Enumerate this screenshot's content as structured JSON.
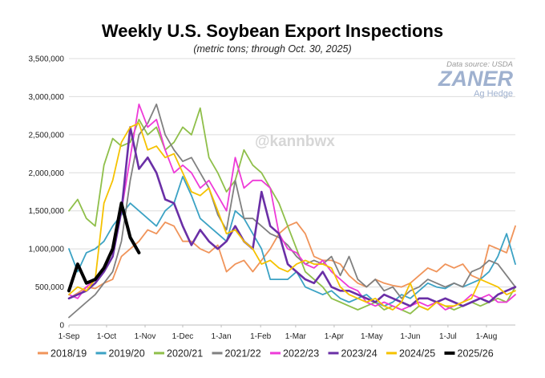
{
  "chart_data": {
    "type": "line",
    "title": "Weekly U.S. Soybean Export Inspections",
    "subtitle": "(metric tons; through Oct. 30, 2025)",
    "source": "Data source: USDA",
    "brand": "ZANER",
    "brand_sub": "Ag Hedge",
    "watermark": "@kannbwx",
    "xlabel": "",
    "ylabel": "",
    "ylim": [
      0,
      3500000
    ],
    "x_weeks": 52,
    "y_ticks": [
      {
        "value": 0,
        "label": "0"
      },
      {
        "value": 500000,
        "label": "500,000"
      },
      {
        "value": 1000000,
        "label": "1,000,000"
      },
      {
        "value": 1500000,
        "label": "1,500,000"
      },
      {
        "value": 2000000,
        "label": "2,000,000"
      },
      {
        "value": 2500000,
        "label": "2,500,000"
      },
      {
        "value": 3000000,
        "label": "3,000,000"
      },
      {
        "value": 3500000,
        "label": "3,500,000"
      }
    ],
    "x_ticks": [
      {
        "week": 0,
        "label": "1-Sep"
      },
      {
        "week": 4.3,
        "label": "1-Oct"
      },
      {
        "week": 8.7,
        "label": "1-Nov"
      },
      {
        "week": 13,
        "label": "1-Dec"
      },
      {
        "week": 17.4,
        "label": "1-Jan"
      },
      {
        "week": 21.9,
        "label": "1-Feb"
      },
      {
        "week": 25.9,
        "label": "1-Mar"
      },
      {
        "week": 30.3,
        "label": "1-Apr"
      },
      {
        "week": 34.6,
        "label": "1-May"
      },
      {
        "week": 39,
        "label": "1-Jun"
      },
      {
        "week": 43.3,
        "label": "1-Jul"
      },
      {
        "week": 47.7,
        "label": "1-Aug"
      }
    ],
    "series": [
      {
        "name": "2018/19",
        "color": "#f0945a",
        "width": 1.8,
        "values": [
          350000,
          420000,
          500000,
          480000,
          550000,
          600000,
          900000,
          1000000,
          1100000,
          1250000,
          1200000,
          1350000,
          1300000,
          1100000,
          1100000,
          1000000,
          950000,
          1050000,
          700000,
          800000,
          850000,
          700000,
          850000,
          1000000,
          1200000,
          1300000,
          1350000,
          1200000,
          900000,
          850000,
          850000,
          800000,
          650000,
          550000,
          500000,
          600000,
          550000,
          520000,
          500000,
          550000,
          650000,
          750000,
          700000,
          800000,
          750000,
          800000,
          650000,
          600000,
          1050000,
          1000000,
          950000,
          1300000
        ]
      },
      {
        "name": "2019/20",
        "color": "#3ba2c4",
        "width": 1.8,
        "values": [
          1000000,
          700000,
          950000,
          1000000,
          1100000,
          1300000,
          1450000,
          1600000,
          1500000,
          1400000,
          1300000,
          1500000,
          1600000,
          1950000,
          1700000,
          1400000,
          1300000,
          1200000,
          1100000,
          1500000,
          1400000,
          1200000,
          1000000,
          600000,
          600000,
          600000,
          700000,
          500000,
          450000,
          400000,
          450000,
          350000,
          300000,
          350000,
          400000,
          300000,
          250000,
          300000,
          400000,
          350000,
          450000,
          550000,
          500000,
          480000,
          550000,
          500000,
          550000,
          600000,
          700000,
          900000,
          1200000,
          800000
        ]
      },
      {
        "name": "2020/21",
        "color": "#8fbf4a",
        "width": 1.8,
        "values": [
          1500000,
          1650000,
          1400000,
          1300000,
          2100000,
          2450000,
          2350000,
          2400000,
          2700000,
          2500000,
          2600000,
          2300000,
          2400000,
          2600000,
          2500000,
          2850000,
          2200000,
          2000000,
          1750000,
          1900000,
          2300000,
          2100000,
          2000000,
          1800000,
          1600000,
          1300000,
          1000000,
          700000,
          600000,
          500000,
          350000,
          300000,
          250000,
          200000,
          250000,
          300000,
          200000,
          250000,
          200000,
          150000,
          250000,
          200000,
          300000,
          250000,
          200000,
          250000,
          300000,
          250000,
          300000,
          350000,
          300000,
          500000
        ]
      },
      {
        "name": "2021/22",
        "color": "#808080",
        "width": 1.8,
        "values": [
          100000,
          200000,
          300000,
          400000,
          550000,
          700000,
          1100000,
          1900000,
          2500000,
          2650000,
          2900000,
          2500000,
          2300000,
          2150000,
          2200000,
          2000000,
          1800000,
          1450000,
          1250000,
          1900000,
          1400000,
          1400000,
          1300000,
          1200000,
          1150000,
          1050000,
          900000,
          800000,
          850000,
          800000,
          900000,
          650000,
          900000,
          600000,
          500000,
          600000,
          450000,
          500000,
          350000,
          450000,
          500000,
          600000,
          550000,
          500000,
          550000,
          500000,
          700000,
          750000,
          850000,
          800000,
          650000,
          500000
        ]
      },
      {
        "name": "2022/23",
        "color": "#ee3ad8",
        "width": 1.8,
        "values": [
          400000,
          350000,
          500000,
          600000,
          700000,
          900000,
          1500000,
          2200000,
          2900000,
          2600000,
          2700000,
          2300000,
          2000000,
          2100000,
          2000000,
          1800000,
          1900000,
          1700000,
          1500000,
          2200000,
          1800000,
          1900000,
          1900000,
          1800000,
          1200000,
          1000000,
          950000,
          800000,
          750000,
          850000,
          700000,
          600000,
          500000,
          450000,
          300000,
          250000,
          300000,
          250000,
          200000,
          250000,
          300000,
          250000,
          300000,
          200000,
          250000,
          300000,
          400000,
          350000,
          400000,
          300000,
          300000,
          400000
        ]
      },
      {
        "name": "2023/24",
        "color": "#6a2fa6",
        "width": 2.6,
        "values": [
          350000,
          400000,
          450000,
          550000,
          700000,
          900000,
          1500000,
          2600000,
          2050000,
          2200000,
          2000000,
          1650000,
          1600000,
          1300000,
          1050000,
          1250000,
          1100000,
          1000000,
          1100000,
          1300000,
          1100000,
          1000000,
          1750000,
          1300000,
          1200000,
          800000,
          700000,
          600000,
          550000,
          700000,
          500000,
          450000,
          450000,
          400000,
          350000,
          300000,
          400000,
          350000,
          300000,
          250000,
          350000,
          350000,
          300000,
          350000,
          300000,
          250000,
          300000,
          350000,
          300000,
          400000,
          450000,
          500000
        ]
      },
      {
        "name": "2024/25",
        "color": "#f5c200",
        "width": 1.8,
        "values": [
          400000,
          500000,
          450000,
          600000,
          1600000,
          1900000,
          2400000,
          2600000,
          2650000,
          2300000,
          2350000,
          2200000,
          2250000,
          2000000,
          1750000,
          1700000,
          1800000,
          1500000,
          1200000,
          1250000,
          1100000,
          1000000,
          800000,
          850000,
          750000,
          700000,
          800000,
          850000,
          800000,
          800000,
          750000,
          500000,
          400000,
          350000,
          300000,
          350000,
          250000,
          200000,
          300000,
          550000,
          250000,
          200000,
          300000,
          250000,
          250000,
          300000,
          350000,
          600000,
          550000,
          500000,
          400000,
          450000
        ]
      },
      {
        "name": "2025/26",
        "color": "#000000",
        "width": 4,
        "values": [
          450000,
          800000,
          550000,
          600000,
          750000,
          1000000,
          1600000,
          1150000,
          950000
        ]
      }
    ]
  }
}
